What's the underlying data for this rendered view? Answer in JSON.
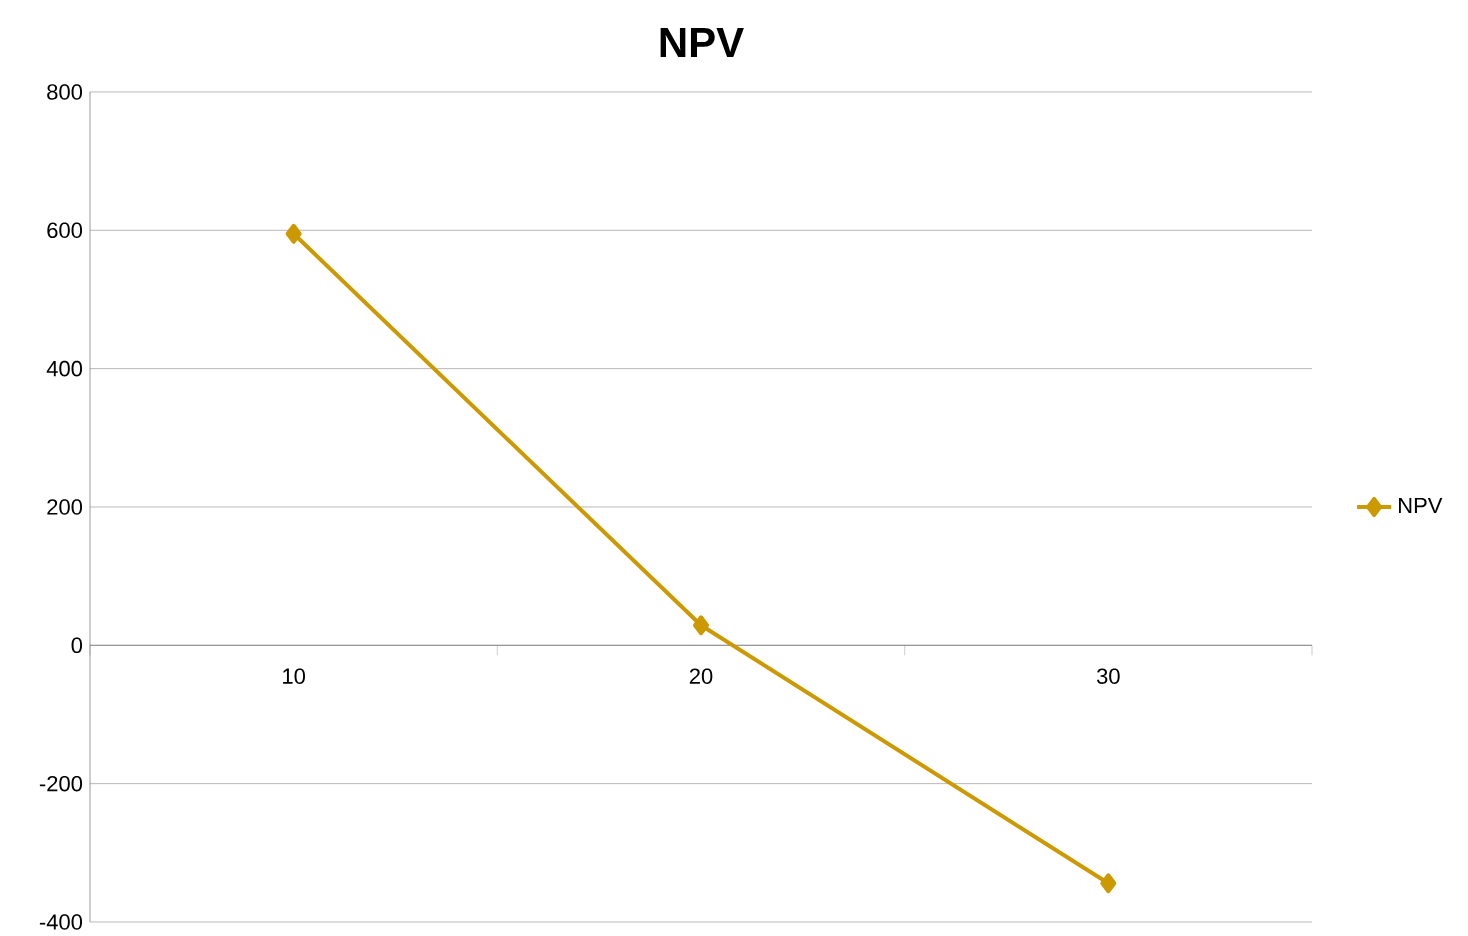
{
  "chart_data": {
    "type": "line",
    "title": "NPV",
    "categories": [
      "10",
      "20",
      "30"
    ],
    "series": [
      {
        "name": "NPV",
        "color": "#cc9900",
        "values": [
          595,
          29,
          -344
        ]
      }
    ],
    "ylim": [
      -400,
      800
    ],
    "yticks": [
      -400,
      -200,
      0,
      200,
      400,
      600,
      800
    ],
    "grid": "y",
    "legend": "right",
    "marker": "diamond",
    "line_style": "solid"
  }
}
